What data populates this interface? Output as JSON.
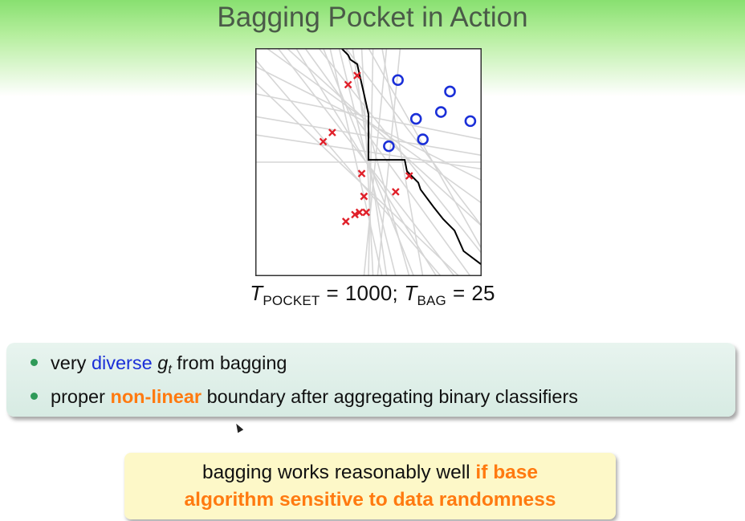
{
  "slide": {
    "title": "Bagging Pocket in Action"
  },
  "formula": {
    "t": "T",
    "pocket_sub": "POCKET",
    "eq": "=",
    "pocket_value": "1000;",
    "bag_sub": "BAG",
    "bag_value": "25"
  },
  "bullets": [
    {
      "pre": "very ",
      "highlight": "diverse",
      "g": "g",
      "g_sub": "t",
      "post": " from bagging"
    },
    {
      "pre": "proper ",
      "highlight": "non-linear",
      "post": " boundary after aggregating binary classifiers"
    }
  ],
  "callout": {
    "line1_plain": "bagging works reasonably well ",
    "line1_em": "if base",
    "line2_em": "algorithm sensitive to data randomness"
  },
  "colors": {
    "bullet_dot": "#2e9a58",
    "diverse": "#1a2fd8",
    "emphasis_orange": "#ff7a10",
    "pos_marker": "#1a2fd8",
    "neg_marker": "#e0202a",
    "bag_lines": "#d6d6d6",
    "boundary": "#000000"
  },
  "chart_data": {
    "type": "scatter",
    "xlim": [
      0,
      1
    ],
    "ylim": [
      0,
      1
    ],
    "grid": false,
    "series": [
      {
        "marker": "o",
        "points": [
          [
            0.63,
            0.86
          ],
          [
            0.86,
            0.81
          ],
          [
            0.82,
            0.72
          ],
          [
            0.71,
            0.69
          ],
          [
            0.95,
            0.68
          ],
          [
            0.74,
            0.6
          ],
          [
            0.59,
            0.57
          ]
        ]
      },
      {
        "marker": "x",
        "points": [
          [
            0.45,
            0.88
          ],
          [
            0.41,
            0.84
          ],
          [
            0.34,
            0.63
          ],
          [
            0.3,
            0.59
          ],
          [
            0.47,
            0.45
          ],
          [
            0.68,
            0.44
          ],
          [
            0.62,
            0.37
          ],
          [
            0.48,
            0.35
          ],
          [
            0.46,
            0.28
          ],
          [
            0.49,
            0.28
          ],
          [
            0.44,
            0.27
          ],
          [
            0.4,
            0.24
          ]
        ]
      }
    ],
    "boundary": [
      [
        0.38,
        1.0
      ],
      [
        0.4,
        0.98
      ],
      [
        0.41,
        0.97
      ],
      [
        0.42,
        0.95
      ],
      [
        0.45,
        0.93
      ],
      [
        0.48,
        0.8
      ],
      [
        0.5,
        0.71
      ],
      [
        0.5,
        0.51
      ],
      [
        0.66,
        0.51
      ],
      [
        0.67,
        0.46
      ],
      [
        0.72,
        0.41
      ],
      [
        0.73,
        0.38
      ],
      [
        0.79,
        0.3
      ],
      [
        0.83,
        0.25
      ],
      [
        0.88,
        0.2
      ],
      [
        0.92,
        0.11
      ],
      [
        1.0,
        0.05
      ]
    ],
    "bag_lines": [
      [
        [
          0.33,
          1.0
        ],
        [
          0.56,
          0.0
        ]
      ],
      [
        [
          0.37,
          1.0
        ],
        [
          0.62,
          0.0
        ]
      ],
      [
        [
          0.4,
          1.0
        ],
        [
          0.68,
          0.0
        ]
      ],
      [
        [
          0.43,
          1.0
        ],
        [
          0.58,
          0.0
        ]
      ],
      [
        [
          0.47,
          1.0
        ],
        [
          0.52,
          0.0
        ]
      ],
      [
        [
          0.52,
          1.0
        ],
        [
          0.5,
          0.0
        ]
      ],
      [
        [
          0.58,
          1.0
        ],
        [
          0.48,
          0.0
        ]
      ],
      [
        [
          0.64,
          1.0
        ],
        [
          0.54,
          0.0
        ]
      ],
      [
        [
          0.22,
          1.0
        ],
        [
          0.95,
          0.0
        ]
      ],
      [
        [
          0.28,
          1.0
        ],
        [
          1.0,
          0.1
        ]
      ],
      [
        [
          0.14,
          1.0
        ],
        [
          1.0,
          0.22
        ]
      ],
      [
        [
          0.05,
          1.0
        ],
        [
          1.0,
          0.32
        ]
      ],
      [
        [
          0.0,
          0.92
        ],
        [
          1.0,
          0.42
        ]
      ],
      [
        [
          0.0,
          0.8
        ],
        [
          1.0,
          0.6
        ]
      ],
      [
        [
          0.0,
          0.7
        ],
        [
          1.0,
          0.53
        ]
      ],
      [
        [
          0.0,
          0.62
        ],
        [
          1.0,
          0.47
        ]
      ],
      [
        [
          0.0,
          0.5
        ],
        [
          1.0,
          0.5
        ]
      ],
      [
        [
          0.0,
          0.85
        ],
        [
          0.9,
          0.0
        ]
      ],
      [
        [
          0.0,
          0.95
        ],
        [
          0.82,
          0.0
        ]
      ],
      [
        [
          0.1,
          1.0
        ],
        [
          0.88,
          0.0
        ]
      ],
      [
        [
          0.18,
          1.0
        ],
        [
          0.8,
          0.0
        ]
      ],
      [
        [
          0.4,
          1.0
        ],
        [
          1.0,
          0.22
        ]
      ],
      [
        [
          0.5,
          1.0
        ],
        [
          1.0,
          0.12
        ]
      ],
      [
        [
          0.56,
          1.0
        ],
        [
          0.74,
          0.0
        ]
      ],
      [
        [
          0.3,
          1.0
        ],
        [
          0.7,
          0.0
        ]
      ]
    ]
  }
}
